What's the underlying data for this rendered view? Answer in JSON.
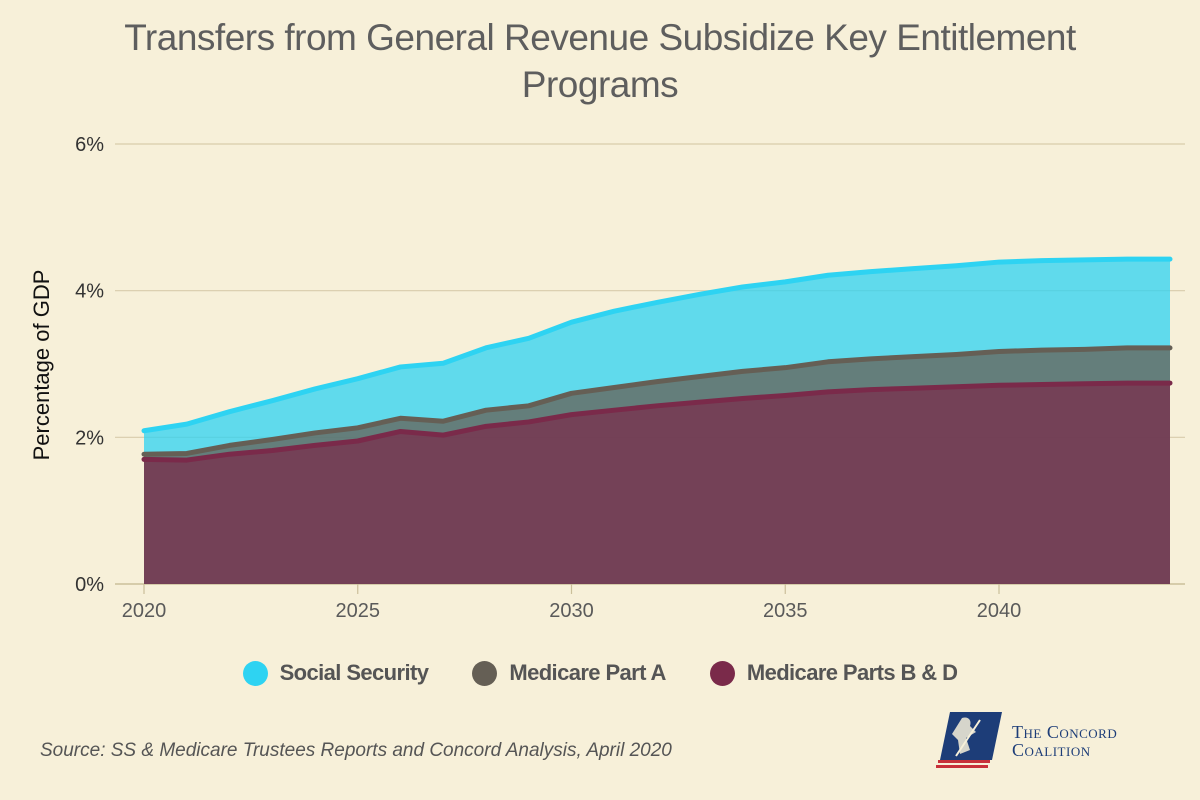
{
  "chart_data": {
    "type": "area",
    "stacked": true,
    "title": "Transfers from General Revenue Subsidize Key Entitlement Programs",
    "ylabel": "Percentage of GDP",
    "xlabel": "",
    "x": [
      2020,
      2021,
      2022,
      2023,
      2024,
      2025,
      2026,
      2027,
      2028,
      2029,
      2030,
      2031,
      2032,
      2033,
      2034,
      2035,
      2036,
      2037,
      2038,
      2039,
      2040,
      2041,
      2042,
      2043,
      2044
    ],
    "xticks": [
      "2020",
      "2025",
      "2030",
      "2035",
      "2040"
    ],
    "xtick_values": [
      2020,
      2025,
      2030,
      2035,
      2040
    ],
    "yticks": [
      "0%",
      "2%",
      "4%",
      "6%"
    ],
    "ytick_values": [
      0,
      2,
      4,
      6
    ],
    "ylim": [
      0,
      6
    ],
    "xlim": [
      2020,
      2044
    ],
    "grid": true,
    "legend_position": "bottom",
    "series": [
      {
        "name": "Medicare Parts B & D",
        "color": "#7a2a4a",
        "cumulative": [
          1.7,
          1.69,
          1.77,
          1.82,
          1.89,
          1.95,
          2.08,
          2.03,
          2.15,
          2.21,
          2.31,
          2.37,
          2.43,
          2.48,
          2.53,
          2.57,
          2.62,
          2.65,
          2.67,
          2.69,
          2.71,
          2.72,
          2.73,
          2.74,
          2.74
        ]
      },
      {
        "name": "Medicare Part A",
        "color": "#655f55",
        "cumulative": [
          1.77,
          1.78,
          1.89,
          1.97,
          2.06,
          2.13,
          2.26,
          2.22,
          2.37,
          2.43,
          2.6,
          2.68,
          2.76,
          2.83,
          2.9,
          2.95,
          3.03,
          3.07,
          3.1,
          3.13,
          3.17,
          3.19,
          3.2,
          3.22,
          3.22
        ]
      },
      {
        "name": "Social Security",
        "color": "#2ed3f2",
        "cumulative": [
          2.09,
          2.18,
          2.35,
          2.5,
          2.66,
          2.8,
          2.96,
          3.01,
          3.22,
          3.35,
          3.57,
          3.72,
          3.84,
          3.95,
          4.05,
          4.12,
          4.21,
          4.26,
          4.3,
          4.34,
          4.39,
          4.41,
          4.42,
          4.43,
          4.43
        ]
      }
    ],
    "legend": [
      {
        "name": "Social Security",
        "color": "#2ed3f2"
      },
      {
        "name": "Medicare Part A",
        "color": "#655f55"
      },
      {
        "name": "Medicare Parts B & D",
        "color": "#7a2a4a"
      }
    ]
  },
  "source": "Source: SS & Medicare Trustees Reports and Concord Analysis, April 2020",
  "logo": {
    "line1": "The Concord",
    "line2": "Coalition"
  }
}
